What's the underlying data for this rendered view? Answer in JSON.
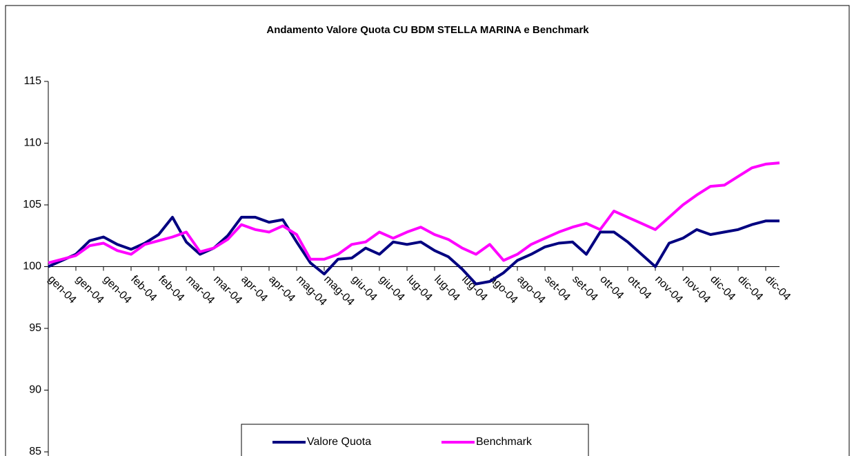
{
  "chart_data": {
    "type": "line",
    "title": "Andamento Valore Quota CU BDM STELLA MARINA  e Benchmark",
    "categories": [
      "gen-04",
      null,
      "gen-04",
      null,
      "gen-04",
      null,
      "feb-04",
      null,
      "feb-04",
      null,
      "mar-04",
      null,
      "mar-04",
      null,
      "apr-04",
      null,
      "apr-04",
      null,
      "mag-04",
      null,
      "mag-04",
      null,
      "giu-04",
      null,
      "giu-04",
      null,
      "lug-04",
      null,
      "lug-04",
      null,
      "lug-04",
      null,
      "ago-04",
      null,
      "ago-04",
      null,
      "set-04",
      null,
      "set-04",
      null,
      "ott-04",
      null,
      "ott-04",
      null,
      "nov-04",
      null,
      "nov-04",
      null,
      "dic-04",
      null,
      "dic-04",
      null,
      "dic-04",
      null
    ],
    "series": [
      {
        "name": "Valore Quota",
        "color": "#000080",
        "values": [
          100.0,
          100.5,
          101.0,
          102.1,
          102.4,
          101.8,
          101.4,
          101.9,
          102.6,
          104.0,
          102.0,
          101.0,
          101.5,
          102.5,
          104.0,
          104.0,
          103.6,
          103.8,
          102.0,
          100.3,
          99.4,
          100.6,
          100.7,
          101.5,
          101.0,
          102.0,
          101.8,
          102.0,
          101.3,
          100.8,
          99.8,
          98.6,
          98.8,
          99.5,
          100.5,
          101.0,
          101.6,
          101.9,
          102.0,
          101.0,
          102.8,
          102.8,
          102.0,
          101.0,
          100.0,
          101.9,
          102.3,
          103.0,
          102.6,
          102.8,
          103.0,
          103.4,
          103.7,
          103.7
        ]
      },
      {
        "name": "Benchmark",
        "color": "#ff00ff",
        "values": [
          100.3,
          100.6,
          100.9,
          101.7,
          101.9,
          101.3,
          101.0,
          101.8,
          102.1,
          102.4,
          102.8,
          101.2,
          101.5,
          102.2,
          103.4,
          103.0,
          102.8,
          103.3,
          102.6,
          100.6,
          100.6,
          101.0,
          101.8,
          102.0,
          102.8,
          102.3,
          102.8,
          103.2,
          102.6,
          102.2,
          101.5,
          101.0,
          101.8,
          100.5,
          101.0,
          101.8,
          102.3,
          102.8,
          103.2,
          103.5,
          103.0,
          104.5,
          104.0,
          103.5,
          103.0,
          104.0,
          105.0,
          105.8,
          106.5,
          106.6,
          107.3,
          108.0,
          108.3,
          108.4
        ]
      }
    ],
    "ylim": [
      85,
      115
    ],
    "yticks": [
      85,
      90,
      95,
      100,
      105,
      110,
      115
    ],
    "xaxis_at": 100,
    "legend": "bottom"
  }
}
